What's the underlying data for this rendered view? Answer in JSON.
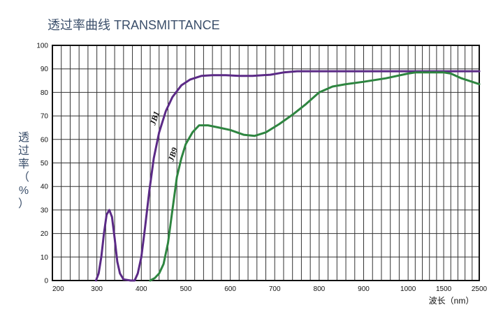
{
  "chart_data": {
    "type": "line",
    "title": "透过率曲线 TRANSMITTANCE",
    "ylabel": [
      "透",
      "过",
      "率",
      "（",
      "%",
      "）"
    ],
    "xlabel": "波长（nm）",
    "ylim": [
      0,
      100
    ],
    "yticks": [
      "0",
      "10",
      "20",
      "30",
      "40",
      "50",
      "60",
      "70",
      "80",
      "90",
      "100"
    ],
    "xticks": [
      "200",
      "300",
      "400",
      "500",
      "600",
      "700",
      "800",
      "900",
      "1000",
      "1500",
      "2500"
    ],
    "grid": true,
    "series": [
      {
        "name": "JB1",
        "color": "#5b2a86",
        "points": [
          [
            298,
            0
          ],
          [
            304,
            3
          ],
          [
            310,
            10
          ],
          [
            316,
            20
          ],
          [
            322,
            28
          ],
          [
            328,
            30
          ],
          [
            334,
            27
          ],
          [
            340,
            18
          ],
          [
            346,
            8
          ],
          [
            352,
            3
          ],
          [
            360,
            0.5
          ],
          [
            376,
            0
          ],
          [
            385,
            0
          ],
          [
            392,
            3
          ],
          [
            400,
            10
          ],
          [
            408,
            22
          ],
          [
            418,
            38
          ],
          [
            428,
            52
          ],
          [
            440,
            63
          ],
          [
            455,
            72
          ],
          [
            470,
            78
          ],
          [
            490,
            83
          ],
          [
            510,
            85.5
          ],
          [
            535,
            87
          ],
          [
            560,
            87.3
          ],
          [
            590,
            87.3
          ],
          [
            620,
            87
          ],
          [
            650,
            87
          ],
          [
            690,
            87.5
          ],
          [
            720,
            88.5
          ],
          [
            750,
            89
          ],
          [
            850,
            89
          ],
          [
            1000,
            89
          ],
          [
            1500,
            89
          ],
          [
            2500,
            89
          ]
        ]
      },
      {
        "name": "JB9",
        "color": "#2e8540",
        "points": [
          [
            420,
            0
          ],
          [
            430,
            1
          ],
          [
            440,
            3
          ],
          [
            450,
            7
          ],
          [
            460,
            16
          ],
          [
            470,
            30
          ],
          [
            480,
            44
          ],
          [
            490,
            52
          ],
          [
            500,
            58
          ],
          [
            515,
            63
          ],
          [
            530,
            66
          ],
          [
            550,
            66
          ],
          [
            575,
            65
          ],
          [
            600,
            64
          ],
          [
            630,
            62
          ],
          [
            655,
            61.5
          ],
          [
            680,
            63
          ],
          [
            710,
            66.5
          ],
          [
            740,
            70.5
          ],
          [
            770,
            75
          ],
          [
            800,
            80
          ],
          [
            830,
            82.5
          ],
          [
            860,
            83.5
          ],
          [
            900,
            84.5
          ],
          [
            950,
            86
          ],
          [
            1000,
            88
          ],
          [
            1100,
            88.5
          ],
          [
            1500,
            88.5
          ],
          [
            1700,
            88
          ],
          [
            2000,
            86
          ],
          [
            2500,
            83.5
          ]
        ]
      }
    ]
  }
}
